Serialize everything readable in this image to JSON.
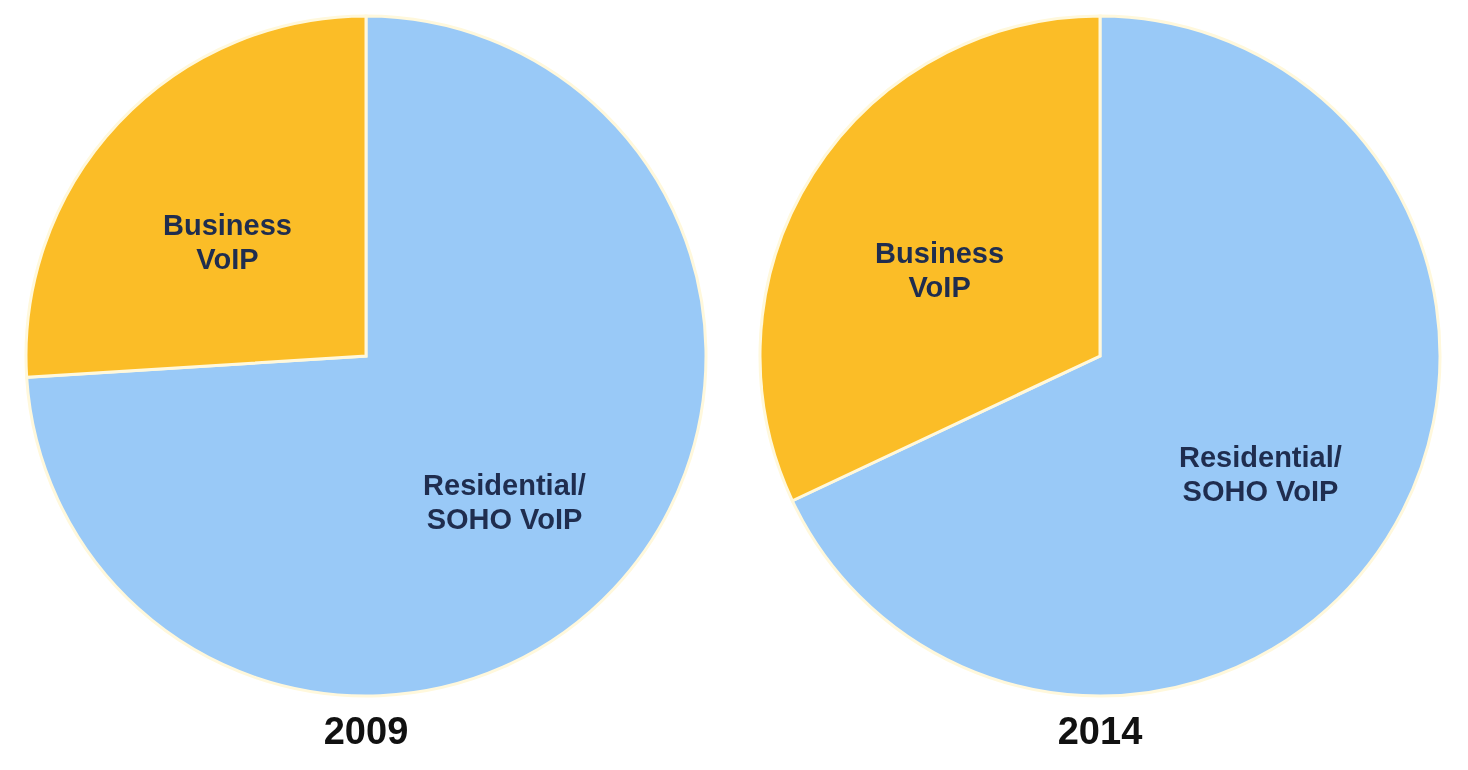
{
  "chart_data": [
    {
      "type": "pie",
      "title": "2009",
      "categories": [
        "Residential/\nSOHO VoIP",
        "Business\nVoIP"
      ],
      "values": [
        74,
        26
      ],
      "colors": [
        "#99c9f7",
        "#fbbd27"
      ]
    },
    {
      "type": "pie",
      "title": "2014",
      "categories": [
        "Residential/\nSOHO VoIP",
        "Business\nVoIP"
      ],
      "values": [
        68,
        32
      ],
      "colors": [
        "#99c9f7",
        "#fbbd27"
      ]
    }
  ]
}
